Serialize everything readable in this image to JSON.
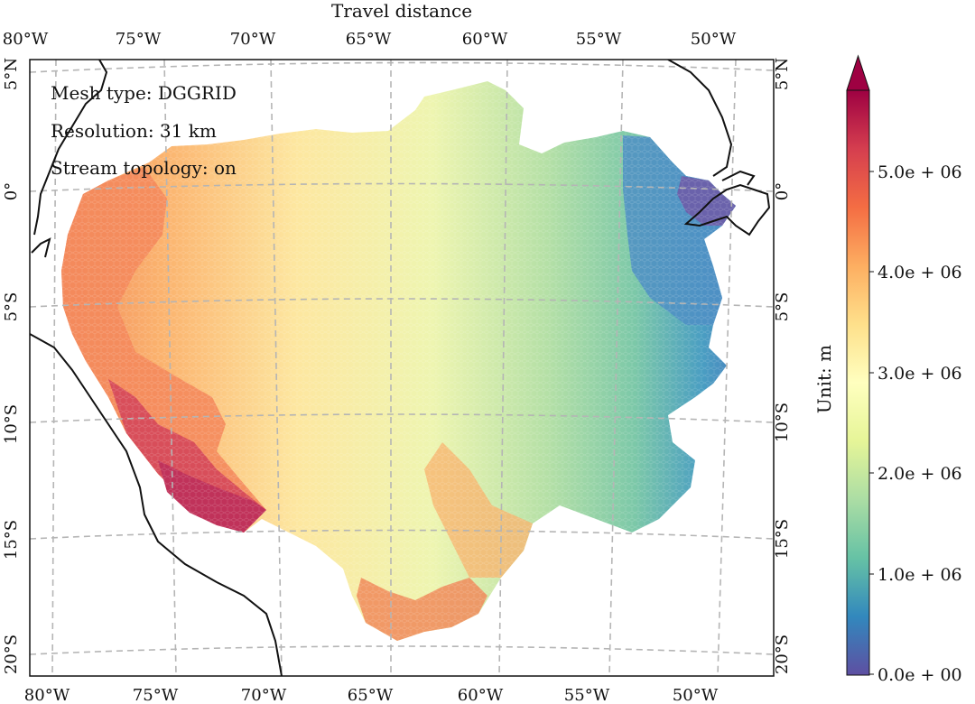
{
  "title": "Travel distance",
  "map": {
    "lon_labels_top": [
      "80°W",
      "75°W",
      "70°W",
      "65°W",
      "60°W",
      "55°W",
      "50°W"
    ],
    "lon_labels_bottom": [
      "80°W",
      "75°W",
      "70°W",
      "65°W",
      "60°W",
      "55°W",
      "50°W"
    ],
    "lat_labels": [
      "5°N",
      "0°",
      "5°S",
      "10°S",
      "15°S",
      "20°S"
    ],
    "gridlines": "dashed",
    "annotations": [
      "Mesh type: DGGRID",
      "Resolution: 31 km",
      "Stream topology: on"
    ]
  },
  "colorbar": {
    "label": "Unit: m",
    "ticks": [
      "0.0e + 00",
      "1.0e + 06",
      "2.0e + 06",
      "3.0e + 06",
      "4.0e + 06",
      "5.0e + 06"
    ],
    "colormap": "Spectral_r",
    "extend": "max",
    "colors": [
      "#5e4fa2",
      "#3288bd",
      "#66c2a5",
      "#abdda4",
      "#e6f598",
      "#ffffbf",
      "#fee08b",
      "#fdae61",
      "#f46d43",
      "#d53e4f",
      "#9e0142"
    ]
  }
}
